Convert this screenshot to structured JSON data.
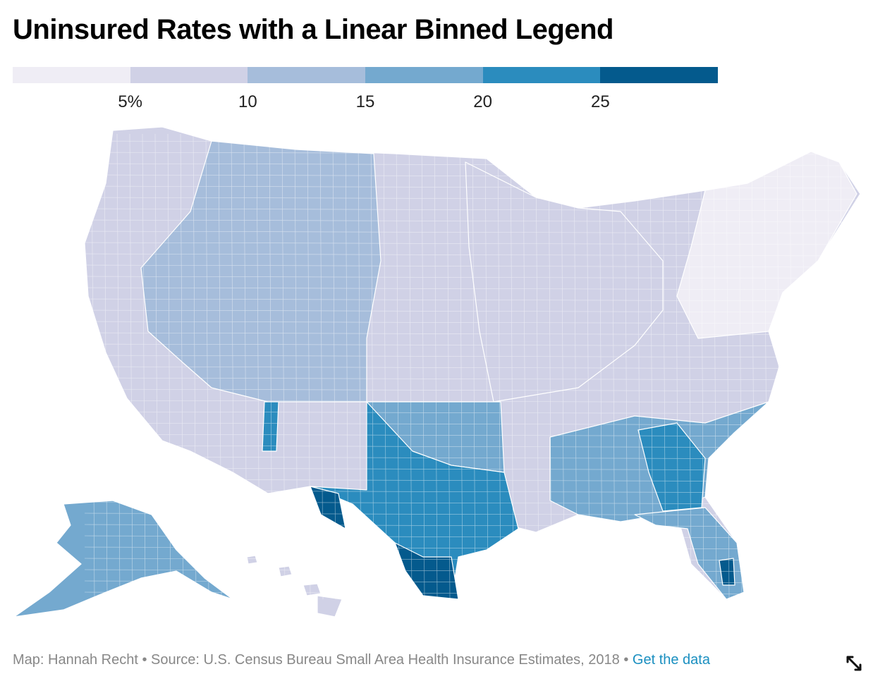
{
  "title": "Uninsured Rates with a Linear Binned Legend",
  "legend": {
    "bins": [
      "#efedf5",
      "#d0d1e6",
      "#a6bddb",
      "#74a9cf",
      "#2b8cbe",
      "#045a8d"
    ],
    "ticks": [
      {
        "label": "5%",
        "value": 5
      },
      {
        "label": "10",
        "value": 10
      },
      {
        "label": "15",
        "value": 15
      },
      {
        "label": "20",
        "value": 20
      },
      {
        "label": "25",
        "value": 25
      }
    ],
    "domain": [
      0,
      30
    ]
  },
  "map": {
    "regions": [
      {
        "name": "lower-48",
        "bin": 1
      },
      {
        "name": "alaska",
        "bin": 3
      },
      {
        "name": "hawaii",
        "bin": 1
      },
      {
        "name": "texas-region",
        "bin": 4
      },
      {
        "name": "south-texas",
        "bin": 5
      },
      {
        "name": "southeast",
        "bin": 3
      },
      {
        "name": "georgia",
        "bin": 4
      },
      {
        "name": "florida",
        "bin": 3
      },
      {
        "name": "south-florida",
        "bin": 5
      },
      {
        "name": "mountain-west",
        "bin": 2
      },
      {
        "name": "northeast",
        "bin": 0
      },
      {
        "name": "midwest",
        "bin": 1
      },
      {
        "name": "oklahoma",
        "bin": 3
      },
      {
        "name": "new-mexico-east",
        "bin": 4
      }
    ]
  },
  "footer": {
    "credit": "Map: Hannah Recht • Source: U.S. Census Bureau Small Area Health Insurance Estimates, 2018 • ",
    "link": "Get the data"
  },
  "expand_icon": "expand-icon"
}
